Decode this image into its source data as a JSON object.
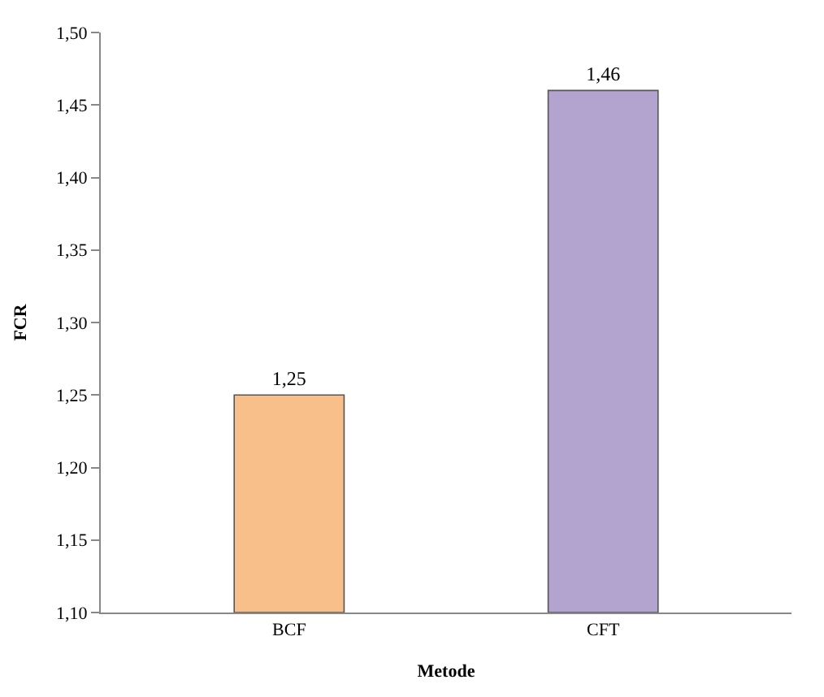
{
  "chart_data": {
    "type": "bar",
    "xlabel": "Metode",
    "ylabel": "FCR",
    "categories": [
      "BCF",
      "CFT"
    ],
    "values": [
      1.25,
      1.46
    ],
    "colors": [
      "#f8bf8a",
      "#b2a3cf"
    ],
    "value_labels": [
      "1,25",
      "1,46"
    ],
    "ylim": [
      1.1,
      1.5
    ],
    "yticks": [
      {
        "value": 1.1,
        "label": "1,10"
      },
      {
        "value": 1.15,
        "label": "1,15"
      },
      {
        "value": 1.2,
        "label": "1,20"
      },
      {
        "value": 1.25,
        "label": "1,25"
      },
      {
        "value": 1.3,
        "label": "1,30"
      },
      {
        "value": 1.35,
        "label": "1,35"
      },
      {
        "value": 1.4,
        "label": "1,40"
      },
      {
        "value": 1.45,
        "label": "1,45"
      },
      {
        "value": 1.5,
        "label": "1,50"
      }
    ],
    "legend": false
  }
}
